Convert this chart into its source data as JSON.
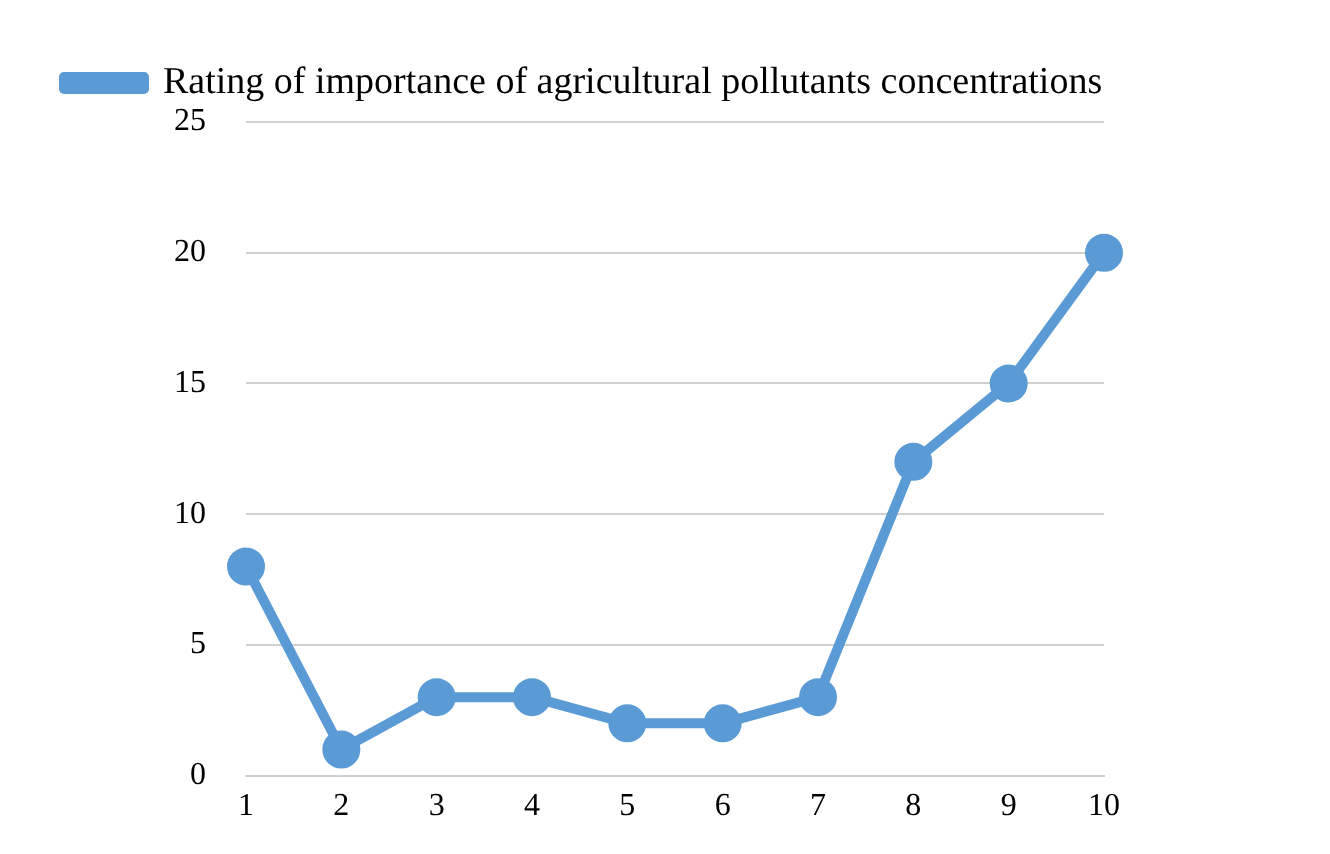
{
  "chart_data": {
    "type": "line",
    "categories": [
      "1",
      "2",
      "3",
      "4",
      "5",
      "6",
      "7",
      "8",
      "9",
      "10"
    ],
    "series": [
      {
        "name": "Rating of importance of agricultural pollutants concentrations",
        "color": "#5b9bd5",
        "values": [
          8,
          1,
          3,
          3,
          2,
          2,
          3,
          12,
          15,
          20
        ]
      }
    ],
    "ylim": [
      0,
      25
    ],
    "yticks": [
      0,
      5,
      10,
      15,
      20,
      25
    ],
    "grid": "y",
    "legend": "top",
    "marker": "circle",
    "line_style": "solid"
  }
}
